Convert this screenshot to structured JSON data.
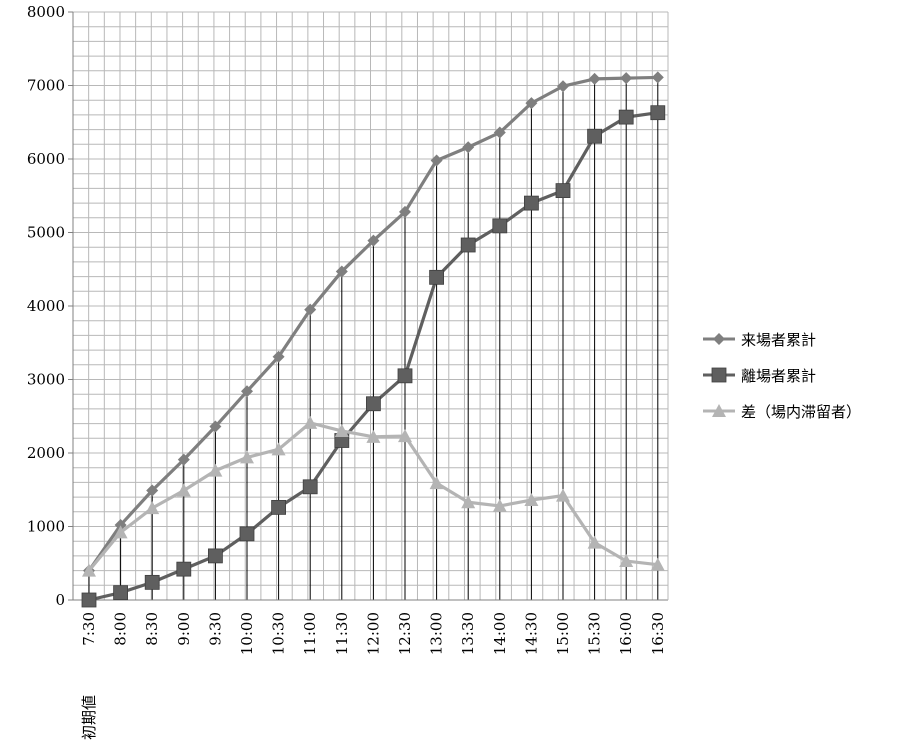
{
  "chart_data": {
    "type": "line",
    "x_sublabel": "初期値",
    "categories": [
      "7:30",
      "8:00",
      "8:30",
      "9:00",
      "9:30",
      "10:00",
      "10:30",
      "11:00",
      "11:30",
      "12:00",
      "12:30",
      "13:00",
      "13:30",
      "14:00",
      "14:30",
      "15:00",
      "15:30",
      "16:00",
      "16:30"
    ],
    "ylim": [
      0,
      8000
    ],
    "yticks": [
      0,
      1000,
      2000,
      3000,
      4000,
      5000,
      6000,
      7000,
      8000
    ],
    "grid": true,
    "legend_position": "right",
    "series": [
      {
        "name": "来場者累計",
        "marker": "diamond",
        "color": "#7f7f7f",
        "values": [
          400,
          1020,
          1490,
          1910,
          2360,
          2840,
          3310,
          3950,
          4470,
          4890,
          5280,
          5980,
          6160,
          6360,
          6760,
          6990,
          7090,
          7100,
          7110
        ]
      },
      {
        "name": "離場者累計",
        "marker": "square",
        "color": "#5f5f5f",
        "values": [
          0,
          100,
          240,
          420,
          600,
          900,
          1260,
          1540,
          2170,
          2670,
          3050,
          4390,
          4830,
          5090,
          5400,
          5570,
          6310,
          6570,
          6630
        ]
      },
      {
        "name": "差（場内滞留者）",
        "marker": "triangle",
        "color": "#b4b4b4",
        "values": [
          400,
          920,
          1250,
          1490,
          1760,
          1940,
          2050,
          2410,
          2300,
          2220,
          2230,
          1590,
          1330,
          1280,
          1360,
          1420,
          780,
          530,
          480
        ]
      }
    ]
  }
}
